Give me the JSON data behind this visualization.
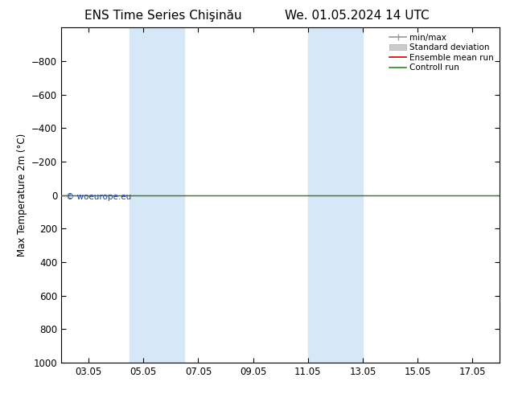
{
  "title_left": "ENS Time Series Chişinău",
  "title_right": "We. 01.05.2024 14 UTC",
  "ylabel": "Max Temperature 2m (°C)",
  "ylim_bottom": 1000,
  "ylim_top": -1000,
  "yticks": [
    -800,
    -600,
    -400,
    -200,
    0,
    200,
    400,
    600,
    800,
    1000
  ],
  "xlim": [
    2.0,
    18.0
  ],
  "xtick_labels": [
    "03.05",
    "05.05",
    "07.05",
    "09.05",
    "11.05",
    "13.05",
    "15.05",
    "17.05"
  ],
  "xtick_positions": [
    3,
    5,
    7,
    9,
    11,
    13,
    15,
    17
  ],
  "blue_bands": [
    [
      4.5,
      5.5
    ],
    [
      5.5,
      6.5
    ],
    [
      11.0,
      12.0
    ],
    [
      12.0,
      13.0
    ]
  ],
  "blue_band_color": "#d6e8f7",
  "green_line_y": 0,
  "green_line_color": "#228B22",
  "red_line_color": "#cc0000",
  "watermark": "© woeurope.eu",
  "watermark_color": "#1a3faa",
  "legend_entries": [
    "min/max",
    "Standard deviation",
    "Ensemble mean run",
    "Controll run"
  ],
  "background_color": "#ffffff",
  "title_fontsize": 11,
  "axis_fontsize": 8.5,
  "legend_fontsize": 7.5
}
